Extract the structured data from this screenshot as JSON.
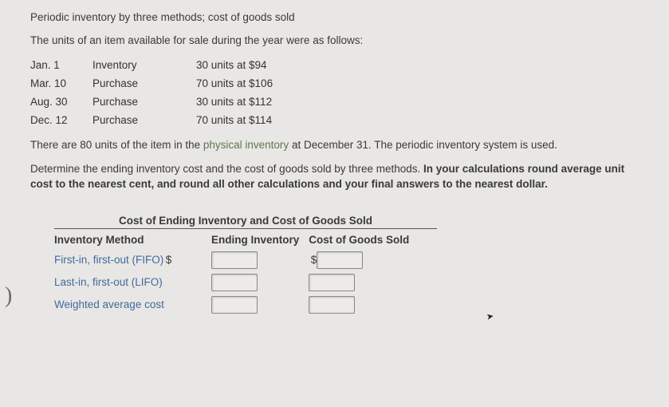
{
  "title": "Periodic inventory by three methods; cost of goods sold",
  "intro": "The units of an item available for sale during the year were as follows:",
  "inventory_rows": [
    {
      "date": "Jan. 1",
      "type": "Inventory",
      "amount": "30 units at $94"
    },
    {
      "date": "Mar. 10",
      "type": "Purchase",
      "amount": "70 units at $106"
    },
    {
      "date": "Aug. 30",
      "type": "Purchase",
      "amount": "30 units at $112"
    },
    {
      "date": "Dec. 12",
      "type": "Purchase",
      "amount": "70 units at $114"
    }
  ],
  "para1_a": "There are 80 units of the item in the ",
  "para1_term": "physical inventory",
  "para1_b": " at December 31. The periodic inventory system is used.",
  "para2_a": "Determine the ending inventory cost and the cost of goods sold by three methods. ",
  "para2_bold": "In your calculations round average unit cost to the nearest cent, and round all other calculations and your final answers to the nearest dollar.",
  "result": {
    "header": "Cost of Ending Inventory and Cost of Goods Sold",
    "col_method": "Inventory Method",
    "col_ei": "Ending Inventory",
    "col_cogs": "Cost of Goods Sold",
    "rows": [
      {
        "label": "First-in, first-out (FIFO)",
        "show_dollar": true
      },
      {
        "label": "Last-in, first-out (LIFO)",
        "show_dollar": false
      },
      {
        "label": "Weighted average cost",
        "show_dollar": false
      }
    ]
  }
}
